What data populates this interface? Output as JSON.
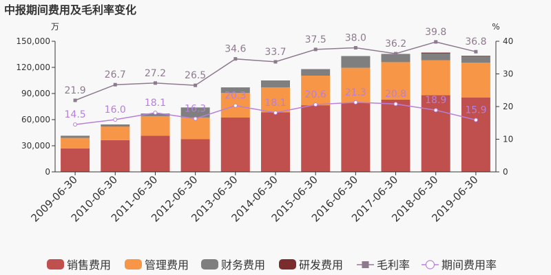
{
  "chart_data": {
    "type": "bar",
    "title": "中报期间费用及毛利率变化",
    "left_unit": "万",
    "right_unit": "%",
    "categories": [
      "2009-06-30",
      "2010-06-30",
      "2011-06-30",
      "2012-06-30",
      "2013-06-30",
      "2014-06-30",
      "2015-06-30",
      "2016-06-30",
      "2017-06-30",
      "2018-06-30",
      "2019-06-30"
    ],
    "ylim": [
      0,
      150000
    ],
    "y_ticks": [
      "0",
      "30,000",
      "60,000",
      "90,000",
      "120,000",
      "150,000"
    ],
    "y2lim": [
      0,
      40
    ],
    "y2_ticks": [
      "0",
      "10",
      "20",
      "30",
      "40"
    ],
    "grid": false,
    "legend_position": "bottom",
    "bar_series": [
      {
        "name": "销售费用",
        "color": "#c0504d",
        "values": [
          27000,
          36500,
          41500,
          37500,
          62500,
          68500,
          76500,
          79500,
          83000,
          88000,
          85500
        ]
      },
      {
        "name": "管理费用",
        "color": "#f79646",
        "values": [
          12000,
          15500,
          22500,
          25000,
          28000,
          28500,
          34000,
          40000,
          43000,
          40000,
          40000
        ]
      },
      {
        "name": "财务费用",
        "color": "#7f7f7f",
        "values": [
          2500,
          2500,
          3000,
          11500,
          6500,
          8000,
          7500,
          13500,
          9500,
          8000,
          7000
        ]
      },
      {
        "name": "研发费用",
        "color": "#7b2c2c",
        "values": [
          0,
          0,
          0,
          0,
          0,
          0,
          0,
          0,
          0,
          1000,
          800
        ]
      }
    ],
    "line_series": [
      {
        "name": "毛利率",
        "color": "#8e7a8e",
        "marker": "square",
        "values": [
          21.9,
          26.7,
          27.2,
          26.5,
          34.6,
          33.7,
          37.5,
          38.0,
          36.2,
          39.8,
          36.8
        ],
        "labels": [
          "21.9",
          "26.7",
          "27.2",
          "26.5",
          "34.6",
          "33.7",
          "37.5",
          "38.0",
          "36.2",
          "39.8",
          "36.8"
        ]
      },
      {
        "name": "期间费用率",
        "color": "#b77fdb",
        "marker": "circle",
        "values": [
          14.5,
          16.0,
          18.1,
          16.3,
          20.3,
          18.1,
          20.6,
          21.3,
          20.8,
          18.9,
          15.9
        ],
        "labels": [
          "14.5",
          "16.0",
          "18.1",
          "16.3",
          "20.3",
          "18.1",
          "20.6",
          "21.3",
          "20.8",
          "18.9",
          "15.9"
        ]
      }
    ]
  }
}
